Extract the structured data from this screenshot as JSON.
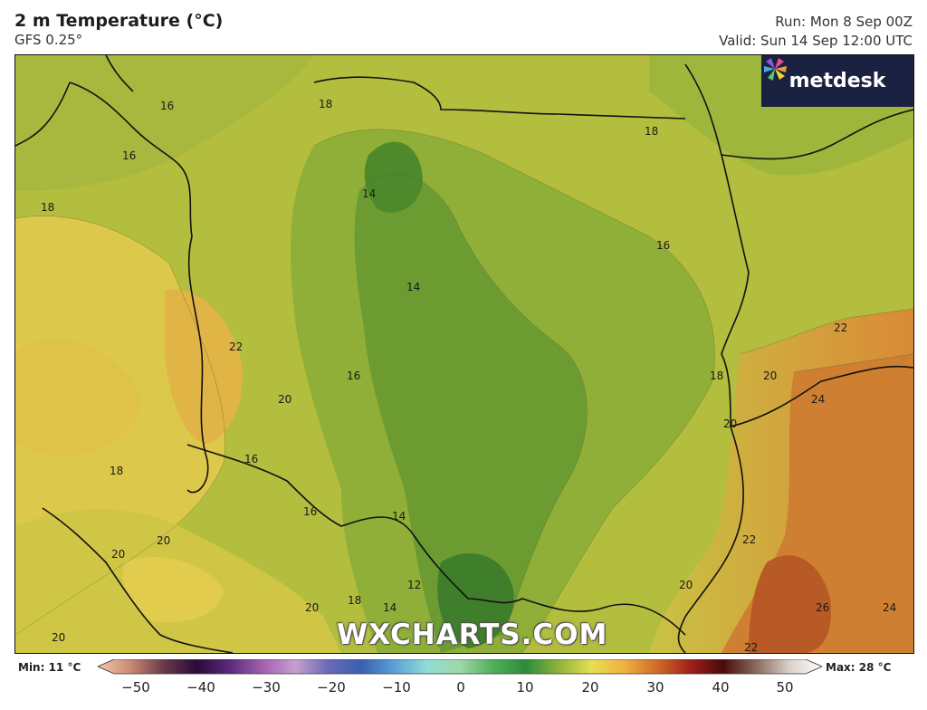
{
  "header": {
    "title": "2 m Temperature (°C)",
    "model": "GFS 0.25°",
    "run": "Run: Mon 8 Sep 00Z",
    "valid": "Valid: Sun 14 Sep 12:00 UTC"
  },
  "logo": {
    "text": "metdesk",
    "icon": "pinwheel-icon"
  },
  "watermark": "WXCHARTS.COM",
  "map_labels": [
    "16",
    "18",
    "16",
    "18",
    "18",
    "14",
    "16",
    "14",
    "22",
    "16",
    "20",
    "18",
    "20",
    "16",
    "22",
    "24",
    "18",
    "16",
    "14",
    "22",
    "20",
    "20",
    "20",
    "12",
    "20",
    "18",
    "14",
    "26",
    "24",
    "20",
    "20",
    "22"
  ],
  "legend": {
    "min": "Min: 11 °C",
    "max": "Max: 28 °C",
    "ticks": [
      "−50",
      "−40",
      "−30",
      "−20",
      "−10",
      "0",
      "10",
      "20",
      "30",
      "40",
      "50"
    ],
    "colors": [
      "#f2c9a9",
      "#c88a72",
      "#6b3a4a",
      "#2a0a3a",
      "#5a2a7a",
      "#a35fb0",
      "#c79fd0",
      "#6a6ab6",
      "#3a5fb0",
      "#5aa0d8",
      "#8fdcd8",
      "#9ed8a8",
      "#4fb05a",
      "#2c8c3a",
      "#8fb33a",
      "#e6df50",
      "#f0b040",
      "#d06a28",
      "#a0201a",
      "#4a0a0a",
      "#8a6a60",
      "#d8d0c8",
      "#ffffff"
    ],
    "unit_note": ""
  }
}
